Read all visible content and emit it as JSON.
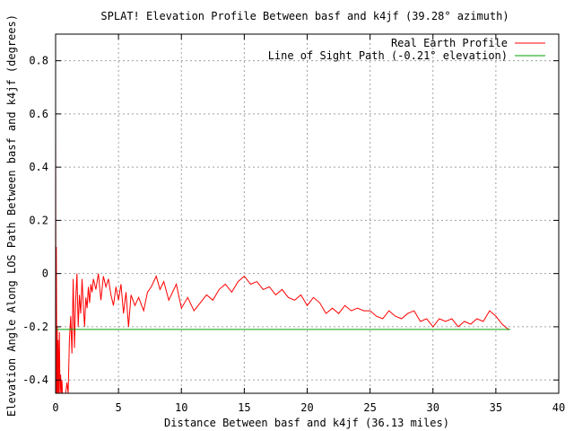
{
  "chart_data": {
    "type": "line",
    "title": "SPLAT! Elevation Profile Between basf and k4jf (39.28° azimuth)",
    "xlabel": "Distance Between basf and k4jf (36.13 miles)",
    "ylabel": "Elevation Angle Along LOS Path Between basf and k4jf (degrees)",
    "xlim": [
      0,
      40
    ],
    "ylim": [
      -0.45,
      0.9
    ],
    "grid": true,
    "legend_position": "top-right",
    "x_ticks": [
      0,
      5,
      10,
      15,
      20,
      25,
      30,
      35,
      40
    ],
    "y_ticks": [
      -0.4,
      -0.2,
      0,
      0.2,
      0.4,
      0.6,
      0.8
    ],
    "x_tick_labels": [
      "0",
      "5",
      "10",
      "15",
      "20",
      "25",
      "30",
      "35",
      "40"
    ],
    "y_tick_labels": [
      "-0.4",
      "-0.2",
      "0",
      "0.2",
      "0.4",
      "0.6",
      "0.8"
    ],
    "series": [
      {
        "name": "Real Earth Profile",
        "color": "#ff0000",
        "x": [
          0,
          0.03,
          0.06,
          0.1,
          0.13,
          0.17,
          0.2,
          0.25,
          0.3,
          0.35,
          0.4,
          0.45,
          0.5,
          0.55,
          0.6,
          0.7,
          0.8,
          0.9,
          1.0,
          1.1,
          1.2,
          1.3,
          1.4,
          1.5,
          1.6,
          1.7,
          1.8,
          1.9,
          2.0,
          2.1,
          2.2,
          2.3,
          2.4,
          2.5,
          2.6,
          2.7,
          2.8,
          2.9,
          3.0,
          3.2,
          3.4,
          3.6,
          3.8,
          4.0,
          4.2,
          4.4,
          4.6,
          4.8,
          5.0,
          5.2,
          5.4,
          5.6,
          5.8,
          6.0,
          6.3,
          6.6,
          7.0,
          7.3,
          7.6,
          8.0,
          8.3,
          8.6,
          9.0,
          9.3,
          9.6,
          10.0,
          10.5,
          11.0,
          11.5,
          12.0,
          12.5,
          13.0,
          13.5,
          14.0,
          14.5,
          15.0,
          15.5,
          16.0,
          16.5,
          17.0,
          17.5,
          18.0,
          18.5,
          19.0,
          19.5,
          20.0,
          20.5,
          21.0,
          21.5,
          22.0,
          22.5,
          23.0,
          23.5,
          24.0,
          24.5,
          25.0,
          25.5,
          26.0,
          26.5,
          27.0,
          27.5,
          28.0,
          28.5,
          29.0,
          29.5,
          30.0,
          30.5,
          31.0,
          31.5,
          32.0,
          32.5,
          33.0,
          33.5,
          34.0,
          34.5,
          35.0,
          35.5,
          36.0,
          36.13
        ],
        "y": [
          0.64,
          -0.45,
          0.1,
          -0.45,
          -0.2,
          -0.45,
          -0.25,
          -0.45,
          -0.22,
          -0.45,
          -0.38,
          -0.45,
          -0.4,
          -0.45,
          -0.45,
          -0.45,
          -0.45,
          -0.41,
          -0.45,
          -0.25,
          -0.16,
          -0.3,
          -0.02,
          -0.28,
          -0.1,
          0.0,
          -0.2,
          -0.08,
          -0.15,
          -0.02,
          -0.12,
          -0.2,
          -0.09,
          -0.13,
          -0.05,
          -0.11,
          -0.04,
          -0.07,
          -0.02,
          -0.06,
          0.0,
          -0.1,
          -0.01,
          -0.05,
          -0.02,
          -0.08,
          -0.12,
          -0.05,
          -0.1,
          -0.04,
          -0.15,
          -0.07,
          -0.2,
          -0.08,
          -0.12,
          -0.09,
          -0.14,
          -0.07,
          -0.05,
          -0.01,
          -0.06,
          -0.03,
          -0.1,
          -0.07,
          -0.04,
          -0.13,
          -0.09,
          -0.14,
          -0.11,
          -0.08,
          -0.1,
          -0.06,
          -0.04,
          -0.07,
          -0.03,
          -0.01,
          -0.04,
          -0.03,
          -0.06,
          -0.05,
          -0.08,
          -0.06,
          -0.09,
          -0.1,
          -0.08,
          -0.12,
          -0.09,
          -0.11,
          -0.15,
          -0.13,
          -0.15,
          -0.12,
          -0.14,
          -0.13,
          -0.14,
          -0.14,
          -0.16,
          -0.17,
          -0.14,
          -0.16,
          -0.17,
          -0.15,
          -0.14,
          -0.18,
          -0.17,
          -0.2,
          -0.17,
          -0.18,
          -0.17,
          -0.2,
          -0.18,
          -0.19,
          -0.17,
          -0.18,
          -0.14,
          -0.16,
          -0.19,
          -0.21,
          -0.21
        ]
      },
      {
        "name": "Line of Sight Path (-0.21° elevation)",
        "color": "#00a000",
        "x": [
          0,
          36.13
        ],
        "y": [
          -0.21,
          -0.21
        ]
      }
    ]
  }
}
